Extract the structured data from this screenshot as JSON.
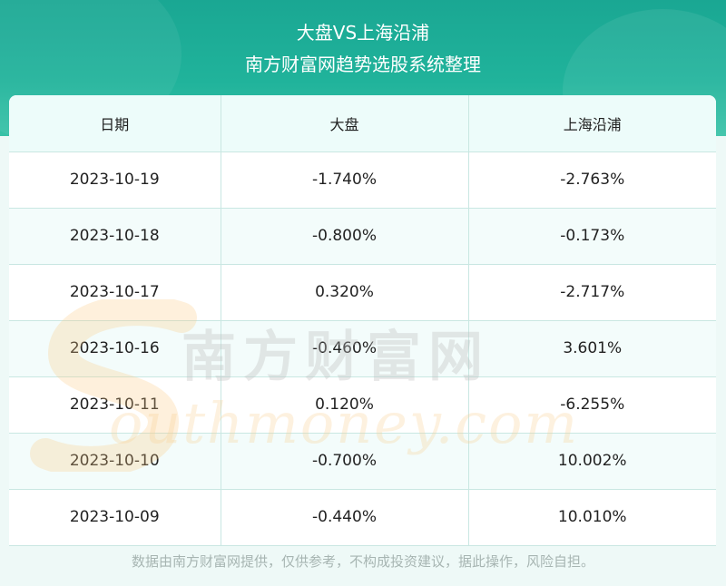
{
  "header": {
    "title": "大盘VS上海沿浦",
    "subtitle": "南方财富网趋势选股系统整理"
  },
  "table": {
    "columns": [
      "日期",
      "大盘",
      "上海沿浦"
    ],
    "rows": [
      [
        "2023-10-19",
        "-1.740%",
        "-2.763%"
      ],
      [
        "2023-10-18",
        "-0.800%",
        "-0.173%"
      ],
      [
        "2023-10-17",
        "0.320%",
        "-2.717%"
      ],
      [
        "2023-10-16",
        "-0.460%",
        "3.601%"
      ],
      [
        "2023-10-11",
        "0.120%",
        "-6.255%"
      ],
      [
        "2023-10-10",
        "-0.700%",
        "10.002%"
      ],
      [
        "2023-10-09",
        "-0.440%",
        "10.010%"
      ]
    ]
  },
  "watermark": {
    "cn": "南方财富网",
    "en": "outhmoney.com"
  },
  "footer": {
    "disclaimer": "数据由南方财富网提供，仅供参考，不构成投资建议，据此操作，风险自担。"
  }
}
